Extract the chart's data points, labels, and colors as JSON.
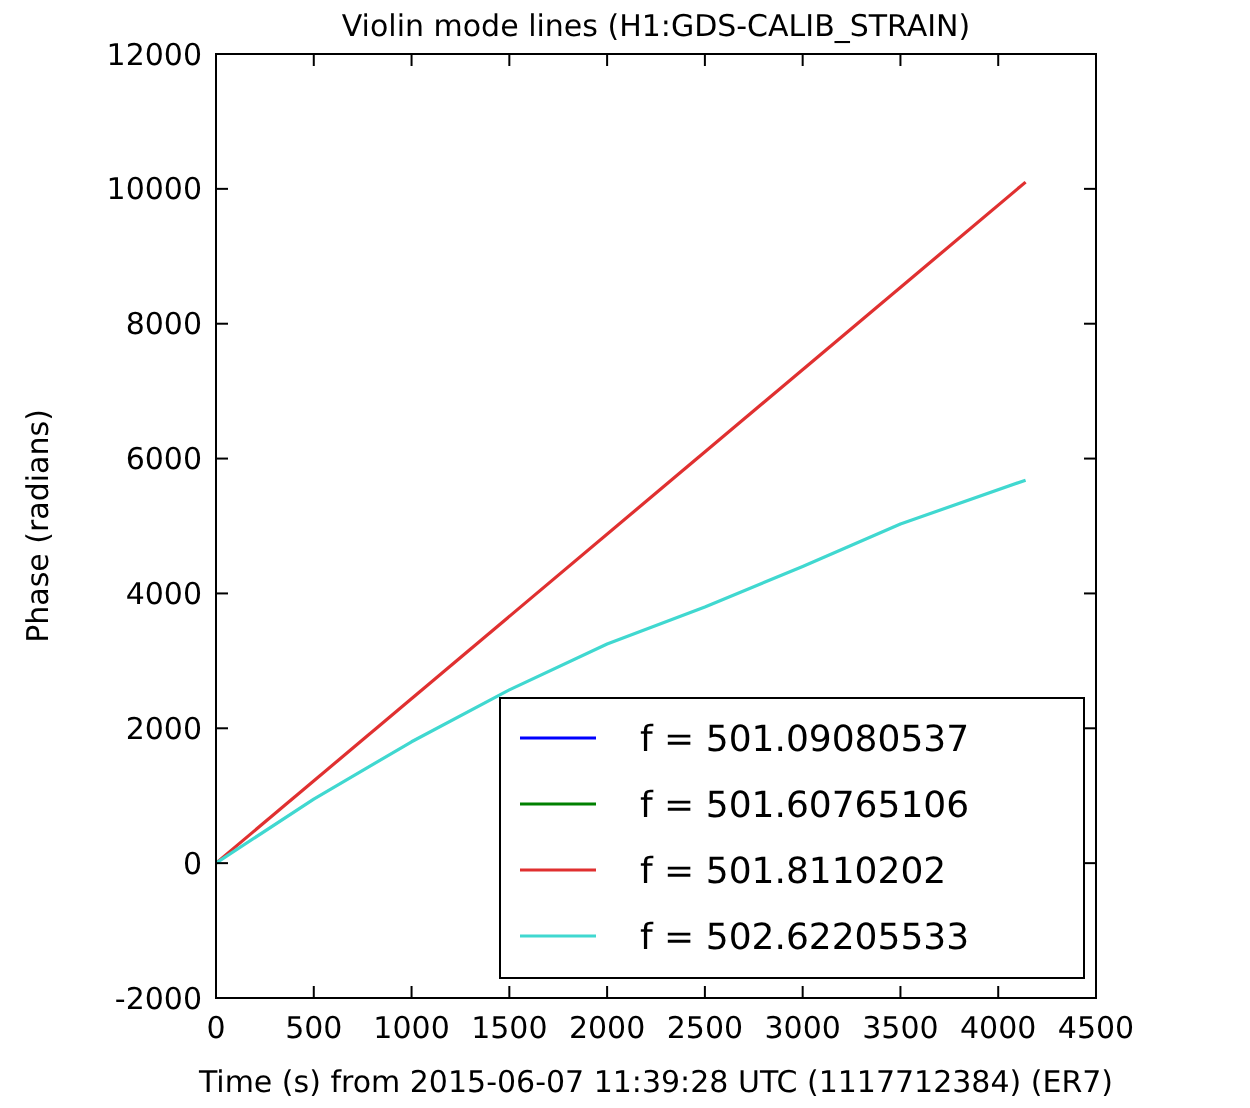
{
  "chart_data": {
    "type": "line",
    "title": "Violin mode lines (H1:GDS-CALIB_STRAIN)",
    "xlabel": "Time (s) from 2015-06-07 11:39:28 UTC (1117712384) (ER7)",
    "ylabel": "Phase (radians)",
    "xlim": [
      0,
      4500
    ],
    "xticks": [
      0,
      500,
      1000,
      1500,
      2000,
      2500,
      3000,
      3500,
      4000,
      4500
    ],
    "ylim": [
      -2000,
      12000
    ],
    "yticks": [
      -2000,
      0,
      2000,
      4000,
      6000,
      8000,
      10000,
      12000
    ],
    "grid": false,
    "legend": "bottom right",
    "line_style": "solid",
    "series": [
      {
        "name": "f = 501.09080537",
        "color": "#0000ff"
      },
      {
        "name": "f = 501.60765106",
        "color": "#008000"
      },
      {
        "name": "f = 501.8110202",
        "color": "#e03030",
        "x": [
          0,
          4140
        ],
        "values": [
          0,
          10100
        ]
      },
      {
        "name": "f = 502.62205533",
        "color": "#40d8d0",
        "x": [
          0,
          500,
          1000,
          1500,
          2000,
          2500,
          3000,
          3500,
          4140
        ],
        "values": [
          0,
          950,
          1800,
          2570,
          3250,
          3800,
          4400,
          5030,
          5680
        ]
      }
    ]
  }
}
